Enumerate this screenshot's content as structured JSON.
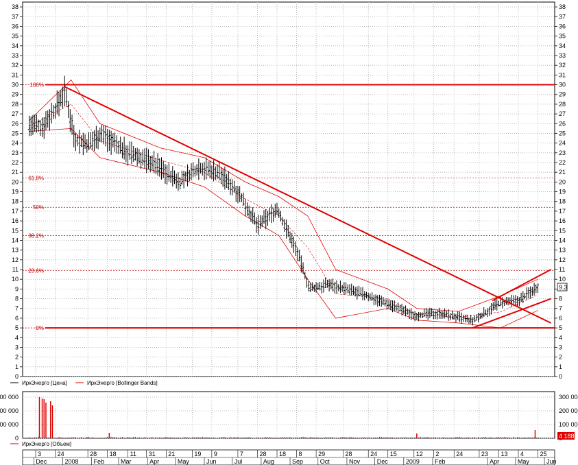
{
  "legend": {
    "price": "ИркЭнерго [Цена]",
    "bollinger": "ИркЭнерго [Bollinger Bands]",
    "volume": "ИркЭнерго [Объем]"
  },
  "last_price_badge": "9.3",
  "last_volume_badge": "4 188",
  "colors": {
    "price_bars": "#000000",
    "bollinger": "#e00000",
    "trend": "#e00000",
    "fibonacci": "#c00000",
    "volume": "#e00000",
    "grid": "#b0b0b0"
  },
  "chart_data": [
    {
      "type": "line",
      "title": "",
      "series_label": "ИркЭнерго [Цена] / ИркЭнерго [Bollinger Bands]",
      "y_ticks": [
        "0",
        "1",
        "2",
        "3",
        "4",
        "5",
        "6",
        "7",
        "8",
        "9",
        "10",
        "11",
        "12",
        "13",
        "14",
        "15",
        "16",
        "17",
        "18",
        "19",
        "20",
        "21",
        "22",
        "23",
        "24",
        "25",
        "26",
        "27",
        "28",
        "29",
        "30",
        "31",
        "32",
        "33",
        "34",
        "35",
        "36",
        "37",
        "38"
      ],
      "ylim": [
        0,
        38.5
      ],
      "grid": true,
      "x_tick_labels": [
        "3",
        "24",
        "28",
        "18",
        "11",
        "31",
        "21",
        "19",
        "9",
        "7",
        "28",
        "18",
        "8",
        "29",
        "28",
        "24",
        "15",
        "12",
        "2",
        "24",
        "23",
        "13",
        "4",
        "25"
      ],
      "x_month_labels": [
        "Dec",
        "2008",
        "Feb",
        "Mar",
        "Apr",
        "May",
        "Jun",
        "Jul",
        "Aug",
        "Sep",
        "Oct",
        "Nov",
        "Dec",
        "2009",
        "Feb",
        "Apr",
        "May",
        "Jun"
      ],
      "price": {
        "approx_path": [
          {
            "x": "2007-11-26",
            "y": 25.8
          },
          {
            "x": "2007-12-10",
            "y": 25.7
          },
          {
            "x": "2007-12-24",
            "y": 27.5
          },
          {
            "x": "2008-01-03",
            "y": 29.3
          },
          {
            "x": "2008-01-14",
            "y": 24.5
          },
          {
            "x": "2008-01-28",
            "y": 23.8
          },
          {
            "x": "2008-02-11",
            "y": 25.0
          },
          {
            "x": "2008-03-11",
            "y": 23.0
          },
          {
            "x": "2008-04-07",
            "y": 22.0
          },
          {
            "x": "2008-05-05",
            "y": 20.0
          },
          {
            "x": "2008-05-26",
            "y": 21.5
          },
          {
            "x": "2008-06-16",
            "y": 21.0
          },
          {
            "x": "2008-07-07",
            "y": 19.0
          },
          {
            "x": "2008-07-28",
            "y": 15.5
          },
          {
            "x": "2008-08-18",
            "y": 17.2
          },
          {
            "x": "2008-09-08",
            "y": 13.0
          },
          {
            "x": "2008-09-22",
            "y": 9.0
          },
          {
            "x": "2008-10-13",
            "y": 9.5
          },
          {
            "x": "2008-11-17",
            "y": 8.5
          },
          {
            "x": "2008-12-15",
            "y": 7.5
          },
          {
            "x": "2009-01-12",
            "y": 6.3
          },
          {
            "x": "2009-02-09",
            "y": 6.5
          },
          {
            "x": "2009-03-16",
            "y": 5.7
          },
          {
            "x": "2009-04-13",
            "y": 7.5
          },
          {
            "x": "2009-05-04",
            "y": 7.8
          },
          {
            "x": "2009-05-25",
            "y": 9.3
          }
        ]
      },
      "bollinger": {
        "upper": [
          {
            "x": "2007-11-26",
            "y": 26.3
          },
          {
            "x": "2008-01-10",
            "y": 30.5
          },
          {
            "x": "2008-02-10",
            "y": 26.0
          },
          {
            "x": "2008-04-15",
            "y": 23.5
          },
          {
            "x": "2008-06-01",
            "y": 22.5
          },
          {
            "x": "2008-07-15",
            "y": 20.0
          },
          {
            "x": "2008-08-20",
            "y": 18.5
          },
          {
            "x": "2008-09-20",
            "y": 16.5
          },
          {
            "x": "2008-10-20",
            "y": 11.0
          },
          {
            "x": "2008-12-15",
            "y": 9.0
          },
          {
            "x": "2009-01-15",
            "y": 7.0
          },
          {
            "x": "2009-03-01",
            "y": 6.7
          },
          {
            "x": "2009-04-15",
            "y": 8.3
          },
          {
            "x": "2009-05-25",
            "y": 10.0
          }
        ],
        "lower": [
          {
            "x": "2007-11-26",
            "y": 25.2
          },
          {
            "x": "2008-01-10",
            "y": 25.5
          },
          {
            "x": "2008-02-10",
            "y": 22.5
          },
          {
            "x": "2008-04-15",
            "y": 21.0
          },
          {
            "x": "2008-06-01",
            "y": 19.5
          },
          {
            "x": "2008-07-15",
            "y": 16.5
          },
          {
            "x": "2008-08-20",
            "y": 14.5
          },
          {
            "x": "2008-09-20",
            "y": 10.0
          },
          {
            "x": "2008-10-20",
            "y": 6.0
          },
          {
            "x": "2008-12-15",
            "y": 7.0
          },
          {
            "x": "2009-01-15",
            "y": 5.8
          },
          {
            "x": "2009-03-01",
            "y": 5.5
          },
          {
            "x": "2009-04-15",
            "y": 5.0
          },
          {
            "x": "2009-05-25",
            "y": 6.8
          }
        ]
      },
      "fibonacci_levels": [
        {
          "label": "100%",
          "y": 30.0
        },
        {
          "label": "61.8%",
          "y": 20.4
        },
        {
          "label": "50%",
          "y": 17.4
        },
        {
          "label": "38.2%",
          "y": 14.5
        },
        {
          "label": "23.6%",
          "y": 10.9
        },
        {
          "label": "0%",
          "y": 5.0
        }
      ],
      "horizontal_lines": [
        30.0,
        5.0
      ],
      "trend_lines": [
        {
          "from": {
            "x": "2008-01-03",
            "y": 29.8
          },
          "to": {
            "x": "2009-06-08",
            "y": 5.5
          }
        },
        {
          "from": {
            "x": "2009-03-16",
            "y": 5.0
          },
          "to": {
            "x": "2009-06-08",
            "y": 8.0
          }
        },
        {
          "from": {
            "x": "2009-04-06",
            "y": 7.8
          },
          "to": {
            "x": "2009-06-08",
            "y": 11.0
          }
        }
      ]
    },
    {
      "type": "bar",
      "title": "",
      "series_label": "ИркЭнерго [Объем]",
      "y_ticks": [
        "0",
        "100 000",
        "200 000",
        "300 000"
      ],
      "ylim": [
        0,
        340000
      ],
      "last_value": 4188,
      "volume_spikes": [
        {
          "x": "2007-12-07",
          "y": 300000
        },
        {
          "x": "2007-12-10",
          "y": 290000
        },
        {
          "x": "2007-12-12",
          "y": 285000
        },
        {
          "x": "2007-12-14",
          "y": 260000
        },
        {
          "x": "2007-12-19",
          "y": 270000
        },
        {
          "x": "2007-12-21",
          "y": 240000
        },
        {
          "x": "2008-02-20",
          "y": 40000
        },
        {
          "x": "2009-01-15",
          "y": 35000
        },
        {
          "x": "2009-05-22",
          "y": 60000
        }
      ]
    }
  ]
}
